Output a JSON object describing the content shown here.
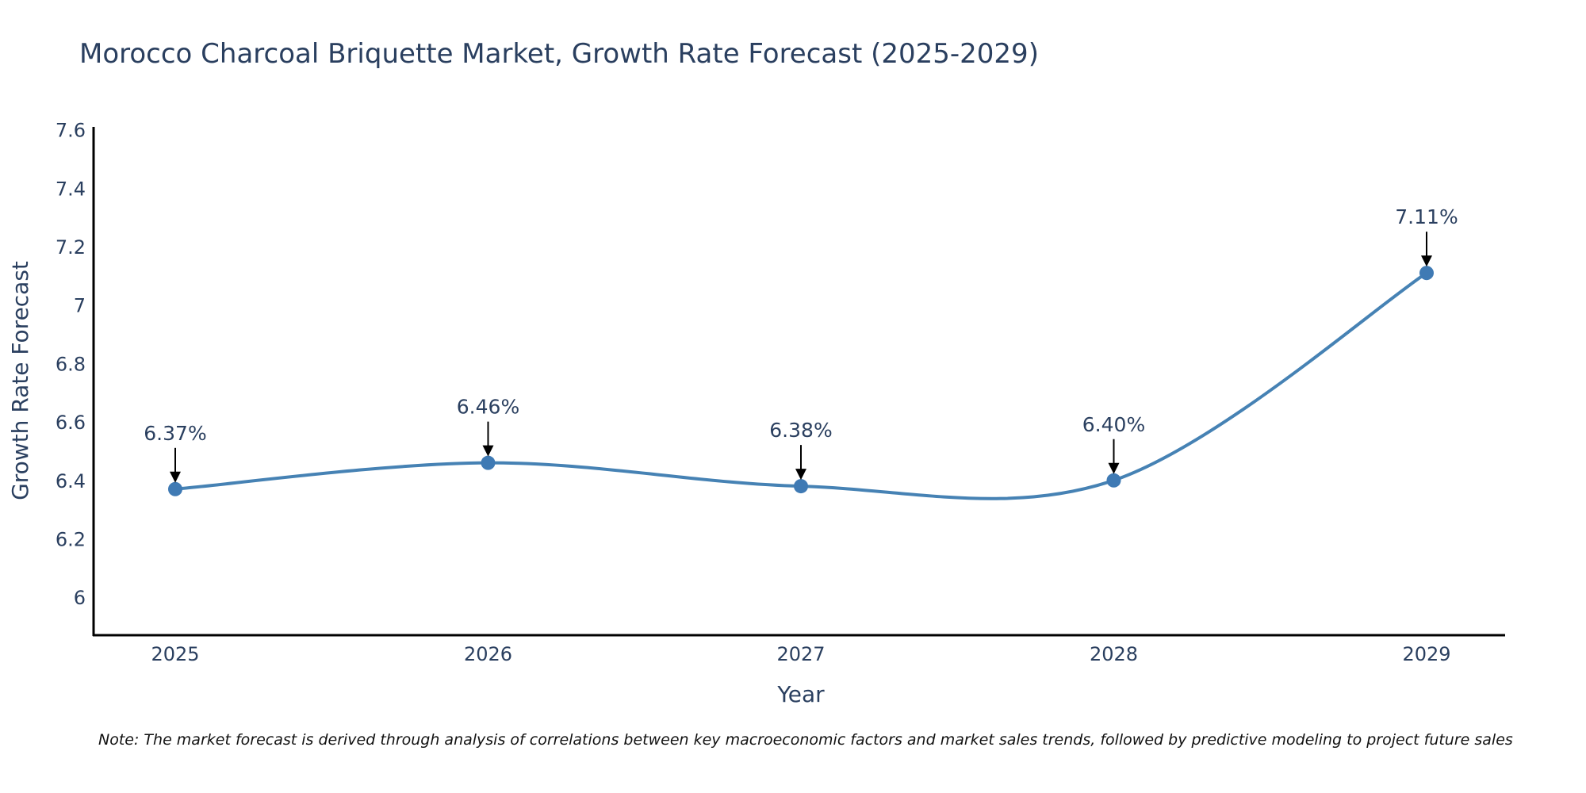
{
  "chart_data": {
    "type": "line",
    "title": "Morocco Charcoal Briquette Market, Growth Rate Forecast (2025-2029)",
    "xlabel": "Year",
    "ylabel": "Growth Rate Forecast",
    "categories": [
      "2025",
      "2026",
      "2027",
      "2028",
      "2029"
    ],
    "values": [
      6.37,
      6.46,
      6.38,
      6.4,
      7.11
    ],
    "data_labels": [
      "6.37%",
      "6.46%",
      "6.38%",
      "6.40%",
      "7.11%"
    ],
    "y_ticks": [
      6,
      6.2,
      6.4,
      6.6,
      6.8,
      7,
      7.2,
      7.4,
      7.6
    ],
    "y_tick_labels": [
      "6",
      "6.2",
      "6.4",
      "6.6",
      "6.8",
      "7",
      "7.2",
      "7.4",
      "7.6"
    ],
    "ylim": [
      5.87,
      7.61
    ],
    "grid": false,
    "line_shape": "spline",
    "note": "Note: The market forecast is derived through analysis of correlations between key macroeconomic factors and market sales trends, followed by predictive modeling to project future sales",
    "colors": {
      "line": "#4682b4",
      "marker": "#3f7ab4",
      "text": "#2a3f5f",
      "axis": "#000000",
      "arrow": "#000000"
    }
  }
}
